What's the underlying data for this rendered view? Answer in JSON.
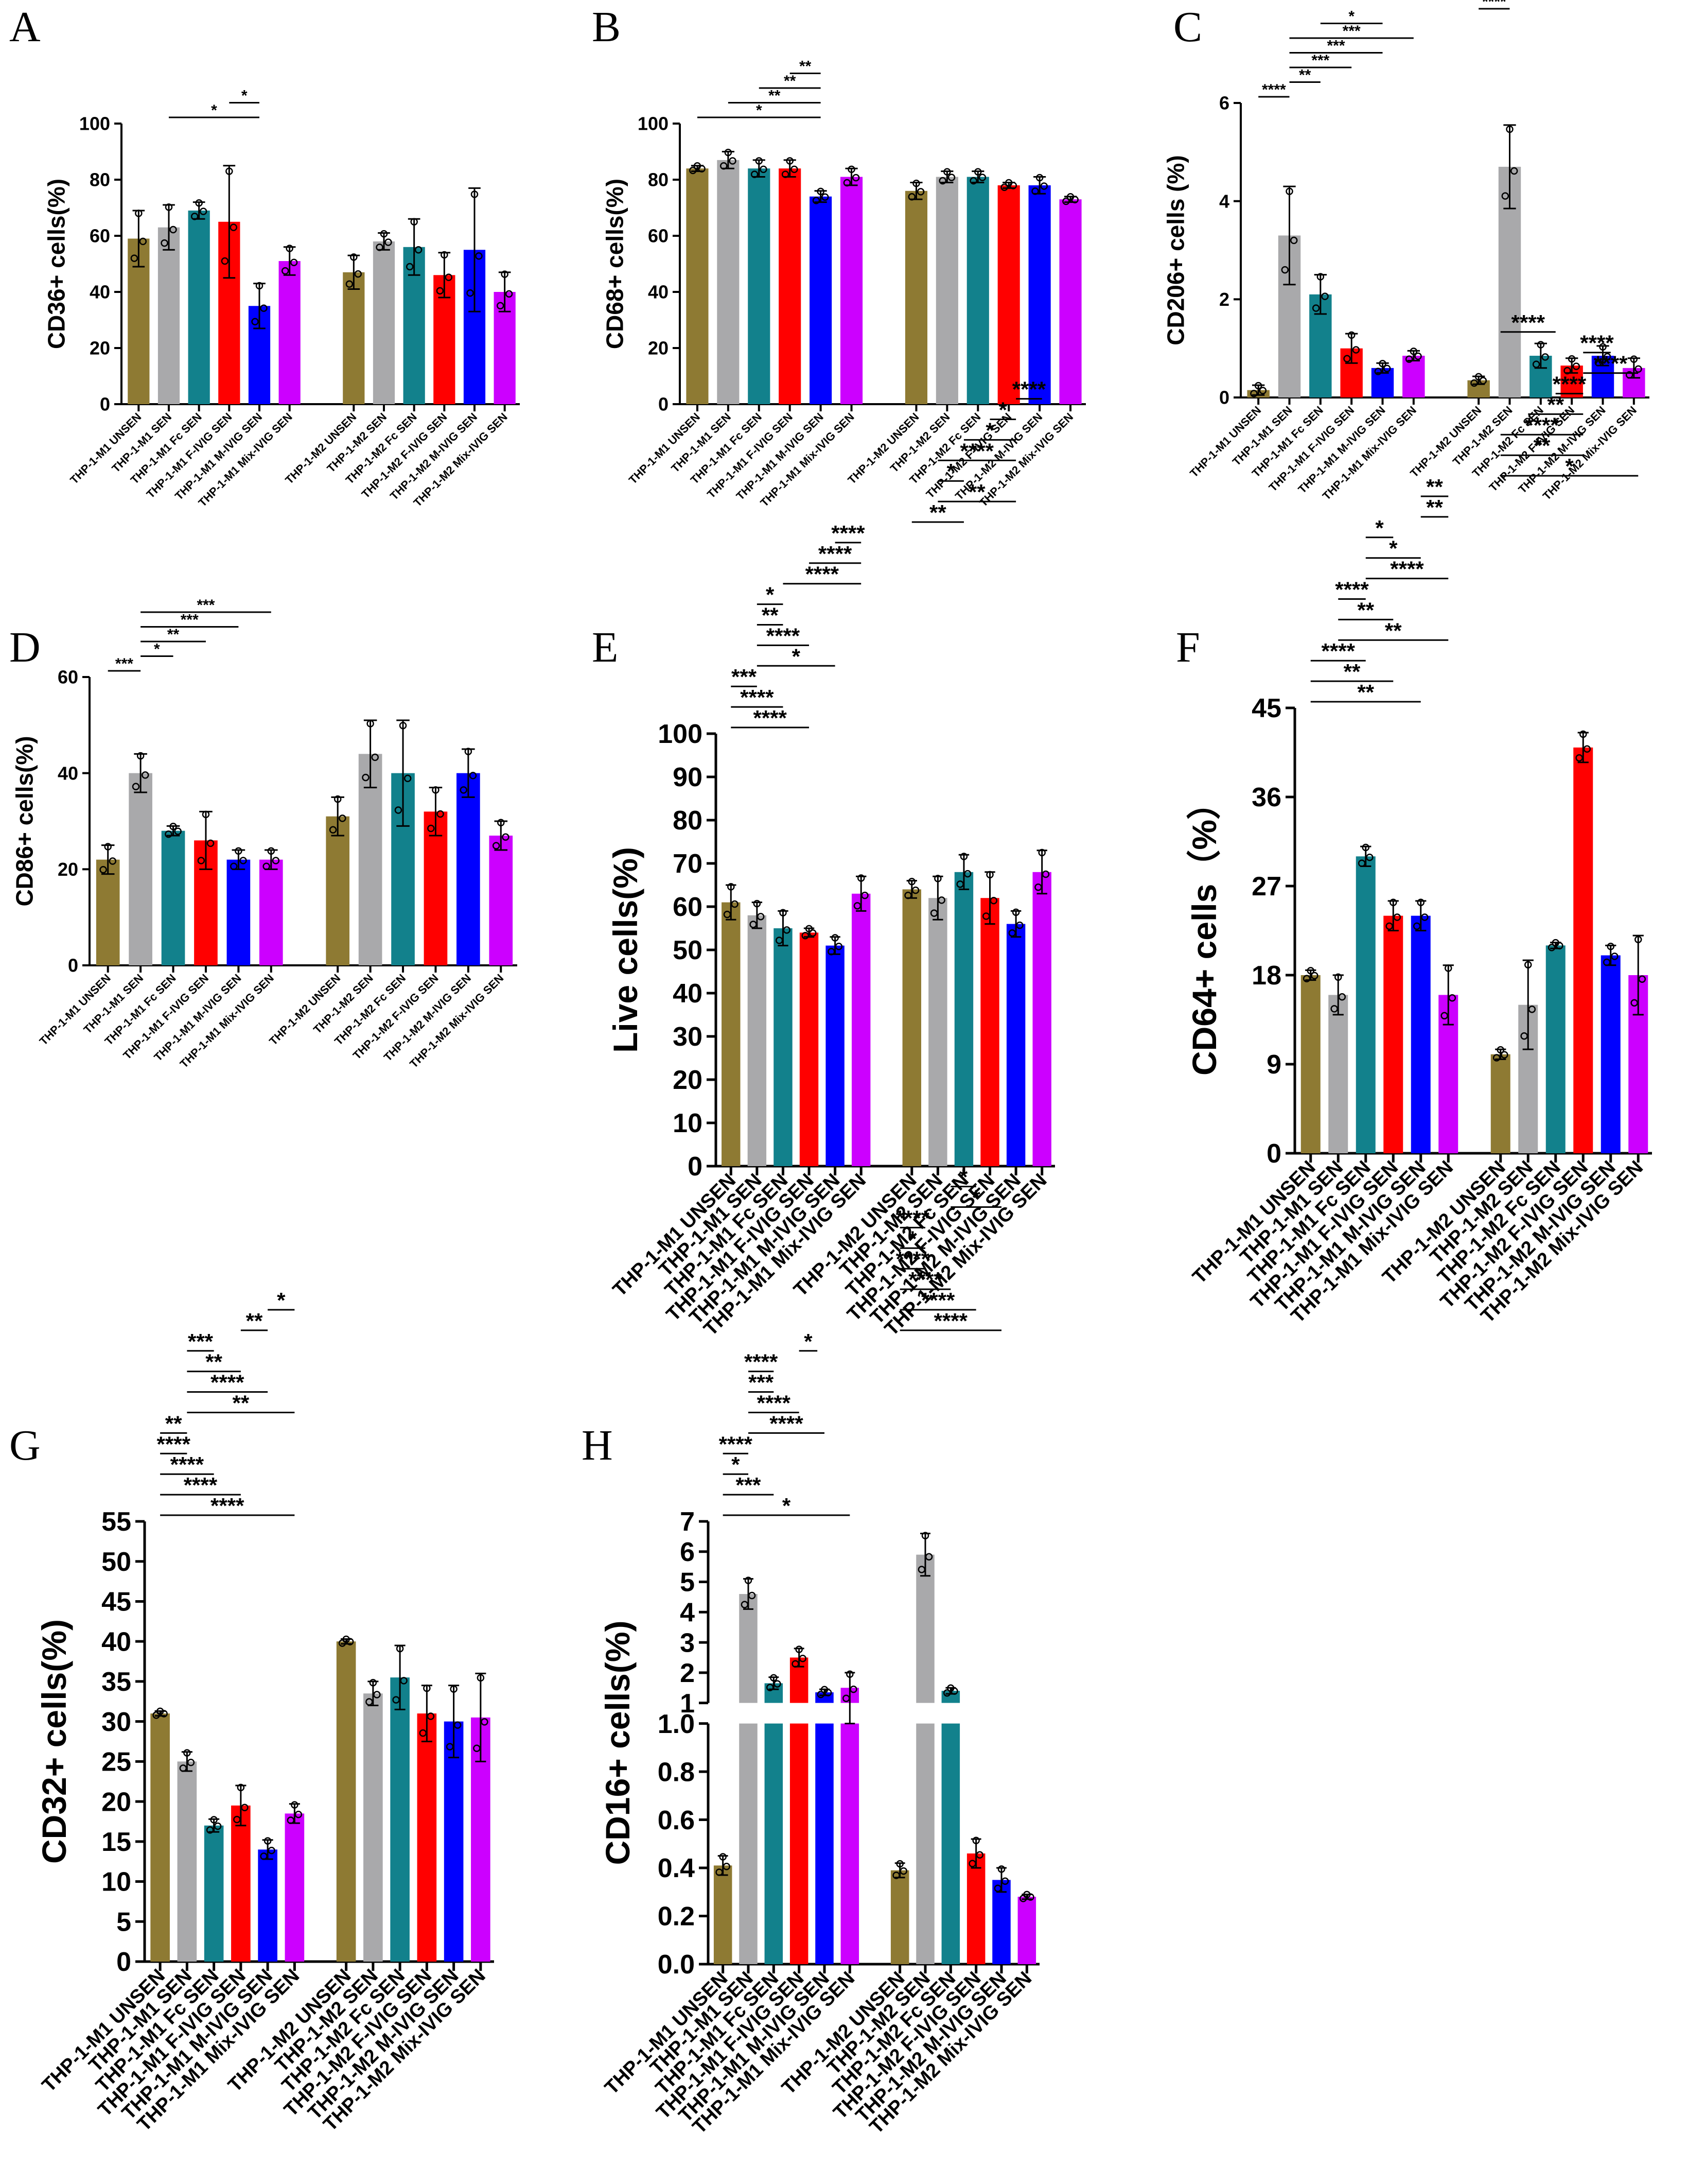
{
  "colors": {
    "groups": [
      "#8E7A33",
      "#A9A9AB",
      "#12818C",
      "#FF0000",
      "#0000FF",
      "#CC00FF"
    ],
    "axis": "#000000",
    "background": "#ffffff"
  },
  "chart_data": [
    {
      "letter": "A",
      "type": "bar",
      "ylabel": "CD36+ cells(%)",
      "ylim": [
        0,
        100
      ],
      "yticks": [
        0,
        20,
        40,
        60,
        80,
        100
      ],
      "categories": [
        "THP-1-M1 UNSEN",
        "THP-1-M1 SEN",
        "THP-1-M1 Fc SEN",
        "THP-1-M1 F-IVIG SEN",
        "THP-1-M1 M-IVIG SEN",
        "THP-1-M1 Mix-IVIG SEN",
        "THP-1-M2 UNSEN",
        "THP-1-M2 SEN",
        "THP-1-M2 Fc SEN",
        "THP-1-M2 F-IVIG SEN",
        "THP-1-M2 M-IVIG SEN",
        "THP-1-M2 Mix-IVIG SEN"
      ],
      "values": [
        59,
        63,
        69,
        65,
        35,
        51,
        47,
        58,
        56,
        46,
        55,
        40
      ],
      "errors": [
        10,
        8,
        3,
        20,
        8,
        5,
        6,
        3,
        10,
        8,
        22,
        7
      ],
      "significance": [
        {
          "from": 1,
          "to": 4,
          "label": "*"
        },
        {
          "from": 3,
          "to": 4,
          "label": "*"
        }
      ]
    },
    {
      "letter": "B",
      "type": "bar",
      "ylabel": "CD68+ cells(%)",
      "ylim": [
        0,
        100
      ],
      "yticks": [
        0,
        20,
        40,
        60,
        80,
        100
      ],
      "categories": [
        "THP-1-M1 UNSEN",
        "THP-1-M1 SEN",
        "THP-1-M1 Fc SEN",
        "THP-1-M1 F-IVIG SEN",
        "THP-1-M1 M-IVIG SEN",
        "THP-1-M1 Mix-IVIG SEN",
        "THP-1-M2 UNSEN",
        "THP-1-M2 SEN",
        "THP-1-M2 Fc SEN",
        "THP-1-M2 F-IVIG SEN",
        "THP-1-M2 M-IVIG SEN",
        "THP-1-M2 Mix-IVIG SEN"
      ],
      "values": [
        84,
        87,
        84,
        84,
        74,
        81,
        76,
        81,
        81,
        78,
        78,
        73
      ],
      "errors": [
        1,
        3,
        3,
        3,
        2,
        3,
        3,
        2,
        2,
        1,
        3,
        1
      ],
      "significance": [
        {
          "from": 0,
          "to": 4,
          "label": "*"
        },
        {
          "from": 1,
          "to": 4,
          "label": "**"
        },
        {
          "from": 2,
          "to": 4,
          "label": "**"
        },
        {
          "from": 3,
          "to": 4,
          "label": "**"
        }
      ]
    },
    {
      "letter": "C",
      "type": "bar",
      "ylabel": "CD206+ cells (%)",
      "ylim": [
        0,
        6
      ],
      "yticks": [
        0,
        2,
        4,
        6
      ],
      "categories": [
        "THP-1-M1 UNSEN",
        "THP-1-M1 SEN",
        "THP-1-M1 Fc SEN",
        "THP-1-M1 F-IVIG SEN",
        "THP-1-M1 M-IVIG SEN",
        "THP-1-M1 Mix-IVIG SEN",
        "THP-1-M2 UNSEN",
        "THP-1-M2 SEN",
        "THP-1-M2 Fc SEN",
        "THP-1-M2 F-IVIG SEN",
        "THP-1-M2 M-IVIG SEN",
        "THP-1-M2 Mix-IVIG SEN"
      ],
      "values": [
        0.15,
        3.3,
        2.1,
        1.0,
        0.6,
        0.85,
        0.35,
        4.7,
        0.85,
        0.65,
        0.85,
        0.6
      ],
      "errors": [
        0.1,
        1.0,
        0.4,
        0.3,
        0.1,
        0.1,
        0.08,
        0.85,
        0.25,
        0.15,
        0.2,
        0.2
      ],
      "significance": [
        {
          "from": 0,
          "to": 1,
          "label": "****"
        },
        {
          "from": 1,
          "to": 2,
          "label": "**"
        },
        {
          "from": 1,
          "to": 3,
          "label": "***"
        },
        {
          "from": 1,
          "to": 4,
          "label": "***"
        },
        {
          "from": 1,
          "to": 5,
          "label": "***"
        },
        {
          "from": 2,
          "to": 4,
          "label": "*"
        },
        {
          "from": 6,
          "to": 7,
          "label": "****"
        },
        {
          "from": 7,
          "to": 8,
          "label": "****"
        },
        {
          "from": 7,
          "to": 9,
          "label": "****"
        },
        {
          "from": 7,
          "to": 10,
          "label": "****"
        },
        {
          "from": 7,
          "to": 11,
          "label": "****"
        }
      ]
    },
    {
      "letter": "D",
      "type": "bar",
      "ylabel": "CD86+ cells(%)",
      "ylim": [
        0,
        60
      ],
      "yticks": [
        0,
        20,
        40,
        60
      ],
      "categories": [
        "THP-1-M1 UNSEN",
        "THP-1-M1 SEN",
        "THP-1-M1 Fc SEN",
        "THP-1-M1 F-IVIG SEN",
        "THP-1-M1 M-IVIG SEN",
        "THP-1-M1 Mix-IVIG SEN",
        "THP-1-M2 UNSEN",
        "THP-1-M2 SEN",
        "THP-1-M2 Fc SEN",
        "THP-1-M2 F-IVIG SEN",
        "THP-1-M2 M-IVIG SEN",
        "THP-1-M2 Mix-IVIG SEN"
      ],
      "values": [
        22,
        40,
        28,
        26,
        22,
        22,
        31,
        44,
        40,
        32,
        40,
        27
      ],
      "errors": [
        3,
        4,
        1,
        6,
        2,
        2,
        4,
        7,
        11,
        5,
        5,
        3
      ],
      "significance": [
        {
          "from": 0,
          "to": 1,
          "label": "***"
        },
        {
          "from": 1,
          "to": 2,
          "label": "*"
        },
        {
          "from": 1,
          "to": 3,
          "label": "**"
        },
        {
          "from": 1,
          "to": 4,
          "label": "***"
        },
        {
          "from": 1,
          "to": 5,
          "label": "***"
        }
      ]
    },
    {
      "letter": "E",
      "type": "bar",
      "ylabel": "Live cells(%)",
      "ylim": [
        0,
        100
      ],
      "yticks": [
        0,
        10,
        20,
        30,
        40,
        50,
        60,
        70,
        80,
        90,
        100
      ],
      "categories": [
        "THP-1-M1 UNSEN",
        "THP-1-M1 SEN",
        "THP-1-M1 Fc SEN",
        "THP-1-M1 F-IVIG SEN",
        "THP-1-M1 M-IVIG SEN",
        "THP-1-M1 Mix-IVIG SEN",
        "THP-1-M2 UNSEN",
        "THP-1-M2 SEN",
        "THP-1-M2 Fc SEN",
        "THP-1-M2 F-IVIG SEN",
        "THP-1-M2 M-IVIG SEN",
        "THP-1-M2 Mix-IVIG SEN"
      ],
      "values": [
        61,
        58,
        55,
        54,
        51,
        63,
        64,
        62,
        68,
        62,
        56,
        68
      ],
      "errors": [
        4,
        3,
        4,
        1,
        2,
        4,
        2,
        5,
        4,
        6,
        3,
        5
      ],
      "significance": [
        {
          "from": 0,
          "to": 3,
          "label": "****"
        },
        {
          "from": 0,
          "to": 2,
          "label": "****"
        },
        {
          "from": 0,
          "to": 1,
          "label": "***"
        },
        {
          "from": 1,
          "to": 4,
          "label": "*"
        },
        {
          "from": 1,
          "to": 3,
          "label": "****"
        },
        {
          "from": 1,
          "to": 2,
          "label": "**"
        },
        {
          "from": 1,
          "to": 2,
          "label": "*"
        },
        {
          "from": 2,
          "to": 5,
          "label": "****"
        },
        {
          "from": 3,
          "to": 5,
          "label": "****"
        },
        {
          "from": 4,
          "to": 5,
          "label": "****"
        },
        {
          "from": 6,
          "to": 8,
          "label": "**"
        },
        {
          "from": 7,
          "to": 10,
          "label": "**"
        },
        {
          "from": 7,
          "to": 8,
          "label": "*"
        },
        {
          "from": 7,
          "to": 10,
          "label": "****"
        },
        {
          "from": 8,
          "to": 10,
          "label": "*"
        },
        {
          "from": 9,
          "to": 10,
          "label": "*"
        },
        {
          "from": 10,
          "to": 11,
          "label": "****"
        }
      ]
    },
    {
      "letter": "F",
      "type": "bar",
      "ylabel": "CD64+ cells（%）",
      "ylim": [
        0,
        45
      ],
      "yticks": [
        0,
        9,
        18,
        27,
        36,
        45
      ],
      "categories": [
        "THP-1-M1 UNSEN",
        "THP-1-M1 SEN",
        "THP-1-M1 Fc SEN",
        "THP-1-M1 F-IVIG SEN",
        "THP-1-M1 M-IVIG SEN",
        "THP-1-M1 Mix-IVIG SEN",
        "THP-1-M2 UNSEN",
        "THP-1-M2 SEN",
        "THP-1-M2 Fc SEN",
        "THP-1-M2 F-IVIG SEN",
        "THP-1-M2 M-IVIG SEN",
        "THP-1-M2 Mix-IVIG SEN"
      ],
      "values": [
        18,
        16,
        30,
        24,
        24,
        16,
        10,
        15,
        21,
        41,
        20,
        18
      ],
      "errors": [
        0.5,
        2,
        1,
        1.5,
        1.5,
        3,
        0.5,
        4.5,
        0.3,
        1.5,
        1,
        4
      ],
      "significance": [
        {
          "from": 0,
          "to": 4,
          "label": "**"
        },
        {
          "from": 0,
          "to": 3,
          "label": "**"
        },
        {
          "from": 0,
          "to": 2,
          "label": "****"
        },
        {
          "from": 1,
          "to": 5,
          "label": "**"
        },
        {
          "from": 1,
          "to": 3,
          "label": "**"
        },
        {
          "from": 1,
          "to": 2,
          "label": "****"
        },
        {
          "from": 2,
          "to": 5,
          "label": "****"
        },
        {
          "from": 2,
          "to": 4,
          "label": "*"
        },
        {
          "from": 2,
          "to": 3,
          "label": "*"
        },
        {
          "from": 4,
          "to": 5,
          "label": "**"
        },
        {
          "from": 4,
          "to": 5,
          "label": "**"
        },
        {
          "from": 6,
          "to": 11,
          "label": "*"
        },
        {
          "from": 6,
          "to": 9,
          "label": "**"
        },
        {
          "from": 6,
          "to": 9,
          "label": "****"
        },
        {
          "from": 7,
          "to": 9,
          "label": "**"
        },
        {
          "from": 8,
          "to": 9,
          "label": "****"
        },
        {
          "from": 9,
          "to": 11,
          "label": "****"
        },
        {
          "from": 9,
          "to": 10,
          "label": "****"
        },
        {
          "from": 6,
          "to": 8,
          "label": "****"
        }
      ]
    },
    {
      "letter": "G",
      "type": "bar",
      "ylabel": "CD32+ cells(%)",
      "ylim": [
        0,
        55
      ],
      "yticks": [
        0,
        5,
        10,
        15,
        20,
        25,
        30,
        35,
        40,
        45,
        50,
        55
      ],
      "categories": [
        "THP-1-M1 UNSEN",
        "THP-1-M1 SEN",
        "THP-1-M1 Fc SEN",
        "THP-1-M1 F-IVIG SEN",
        "THP-1-M1 M-IVIG SEN",
        "THP-1-M1 Mix-IVIG SEN",
        "THP-1-M2 UNSEN",
        "THP-1-M2 SEN",
        "THP-1-M2 Fc SEN",
        "THP-1-M2 F-IVIG SEN",
        "THP-1-M2 M-IVIG SEN",
        "THP-1-M2 Mix-IVIG SEN"
      ],
      "values": [
        31,
        25,
        17,
        19.5,
        14,
        18.5,
        40,
        33.5,
        35.5,
        31,
        30,
        30.5
      ],
      "errors": [
        0.3,
        1.2,
        0.8,
        2.5,
        1.2,
        1.2,
        0.3,
        1.5,
        4,
        3.5,
        4.5,
        5.5
      ],
      "significance": [
        {
          "from": 0,
          "to": 5,
          "label": "****"
        },
        {
          "from": 0,
          "to": 3,
          "label": "****"
        },
        {
          "from": 0,
          "to": 2,
          "label": "****"
        },
        {
          "from": 0,
          "to": 1,
          "label": "****"
        },
        {
          "from": 0,
          "to": 1,
          "label": "**"
        },
        {
          "from": 1,
          "to": 5,
          "label": "**"
        },
        {
          "from": 1,
          "to": 4,
          "label": "****"
        },
        {
          "from": 1,
          "to": 3,
          "label": "**"
        },
        {
          "from": 1,
          "to": 2,
          "label": "***"
        },
        {
          "from": 3,
          "to": 4,
          "label": "**"
        },
        {
          "from": 4,
          "to": 5,
          "label": "*"
        }
      ]
    },
    {
      "letter": "H",
      "type": "bar",
      "ylabel": "CD16+ cells(%)",
      "broken_axis": {
        "lower": [
          0,
          1.0
        ],
        "upper": [
          1,
          7
        ]
      },
      "yticks_lower": [
        "0.0",
        "0.2",
        "0.4",
        "0.6",
        "0.8",
        "1.0"
      ],
      "yticks_upper": [
        "1",
        "2",
        "3",
        "4",
        "5",
        "6",
        "7"
      ],
      "categories": [
        "THP-1-M1 UNSEN",
        "THP-1-M1 SEN",
        "THP-1-M1 Fc SEN",
        "THP-1-M1 F-IVIG SEN",
        "THP-1-M1 M-IVIG SEN",
        "THP-1-M1 Mix-IVIG SEN",
        "THP-1-M2 UNSEN",
        "THP-1-M2 SEN",
        "THP-1-M2 Fc SEN",
        "THP-1-M2 F-IVIG SEN",
        "THP-1-M2 M-IVIG SEN",
        "THP-1-M2 Mix-IVIG SEN"
      ],
      "values": [
        0.41,
        4.6,
        1.65,
        2.5,
        1.35,
        1.5,
        0.39,
        5.9,
        1.4,
        0.46,
        0.35,
        0.28
      ],
      "errors": [
        0.04,
        0.5,
        0.2,
        0.3,
        0.1,
        0.5,
        0.03,
        0.7,
        0.1,
        0.06,
        0.05,
        0.01
      ],
      "significance": [
        {
          "from": 0,
          "to": 5,
          "label": "*"
        },
        {
          "from": 0,
          "to": 2,
          "label": "***"
        },
        {
          "from": 0,
          "to": 1,
          "label": "*"
        },
        {
          "from": 0,
          "to": 1,
          "label": "****"
        },
        {
          "from": 1,
          "to": 4,
          "label": "****"
        },
        {
          "from": 1,
          "to": 3,
          "label": "****"
        },
        {
          "from": 1,
          "to": 2,
          "label": "***"
        },
        {
          "from": 1,
          "to": 2,
          "label": "****"
        },
        {
          "from": 3,
          "to": 3,
          "label": "*"
        },
        {
          "from": 6,
          "to": 10,
          "label": "****"
        },
        {
          "from": 6,
          "to": 9,
          "label": "****"
        },
        {
          "from": 6,
          "to": 8,
          "label": "****"
        },
        {
          "from": 6,
          "to": 7,
          "label": "****"
        },
        {
          "from": 6,
          "to": 7,
          "label": "*"
        },
        {
          "from": 6,
          "to": 7,
          "label": "****"
        },
        {
          "from": 8,
          "to": 10,
          "label": "*"
        },
        {
          "from": 8,
          "to": 9,
          "label": "*"
        }
      ]
    }
  ]
}
